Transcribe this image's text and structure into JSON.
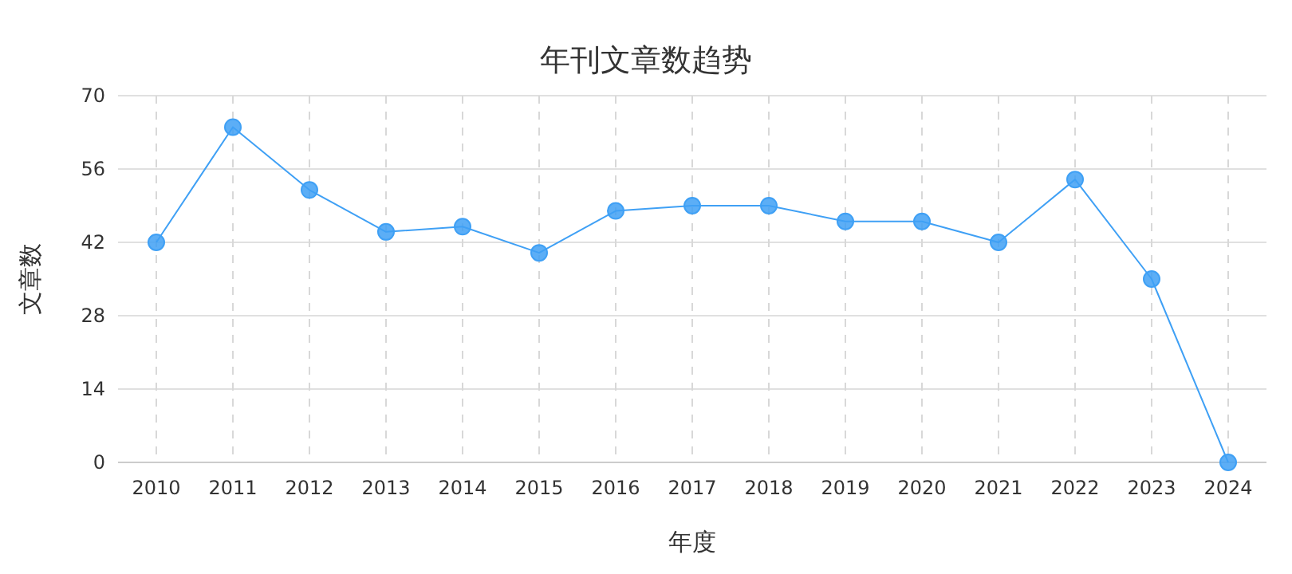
{
  "chart_data": {
    "type": "line",
    "title": "年刊文章数趋势",
    "xlabel": "年度",
    "ylabel": "文章数",
    "categories": [
      "2010",
      "2011",
      "2012",
      "2013",
      "2014",
      "2015",
      "2016",
      "2017",
      "2018",
      "2019",
      "2020",
      "2021",
      "2022",
      "2023",
      "2024"
    ],
    "series": [
      {
        "color": "#3fa0f5",
        "values": [
          42,
          64,
          52,
          44,
          45,
          40,
          48,
          49,
          49,
          46,
          46,
          42,
          54,
          35,
          0
        ]
      }
    ],
    "ylim": [
      0,
      70
    ],
    "yticks": [
      0,
      14,
      28,
      42,
      56,
      70
    ],
    "grid": true,
    "marker": "circle",
    "line_style": "solid"
  }
}
